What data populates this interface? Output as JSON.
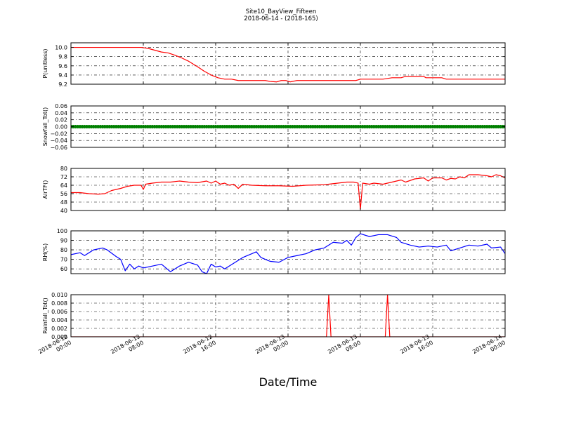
{
  "chart_data": {
    "title_lines": [
      "Site10_BayView_Fifteen",
      "2018-06-14 - (2018-165)"
    ],
    "xlabel": "Date/Time",
    "x_range": [
      "2018-06-12 00:00",
      "2018-06-14 00:00"
    ],
    "x_ticks": [
      {
        "t": "2018-06-12 00:00",
        "label": [
          "2018-06-12",
          "00:00"
        ]
      },
      {
        "t": "2018-06-12 08:00",
        "label": [
          "2018-06-12",
          "08:00"
        ]
      },
      {
        "t": "2018-06-12 16:00",
        "label": [
          "2018-06-12",
          "16:00"
        ]
      },
      {
        "t": "2018-06-13 00:00",
        "label": [
          "2018-06-13",
          "00:00"
        ]
      },
      {
        "t": "2018-06-13 08:00",
        "label": [
          "2018-06-13",
          "08:00"
        ]
      },
      {
        "t": "2018-06-13 16:00",
        "label": [
          "2018-06-13",
          "16:00"
        ]
      },
      {
        "t": "2018-06-14 00:00",
        "label": [
          "2018-06-14",
          "00:00"
        ]
      }
    ],
    "grid": true,
    "panels": [
      {
        "type": "line",
        "ylabel": "P(unitless)",
        "ylim": [
          9.2,
          10.1
        ],
        "yticks": [
          9.2,
          9.4,
          9.6,
          9.8,
          10.0
        ],
        "ytick_labels": [
          "9.2",
          "9.4",
          "9.6",
          "9.8",
          "10.0"
        ],
        "series": [
          {
            "color": "#ff0000",
            "style": "line",
            "points": [
              [
                "2018-06-12 00:00",
                10.0
              ],
              [
                "2018-06-12 02:00",
                10.0
              ],
              [
                "2018-06-12 04:00",
                10.0
              ],
              [
                "2018-06-12 06:00",
                10.0
              ],
              [
                "2018-06-12 07:45",
                10.0
              ],
              [
                "2018-06-12 08:30",
                9.98
              ],
              [
                "2018-06-12 09:15",
                9.94
              ],
              [
                "2018-06-12 10:00",
                9.9
              ],
              [
                "2018-06-12 10:45",
                9.88
              ],
              [
                "2018-06-12 11:30",
                9.83
              ],
              [
                "2018-06-12 12:15",
                9.77
              ],
              [
                "2018-06-12 13:00",
                9.7
              ],
              [
                "2018-06-12 14:00",
                9.58
              ],
              [
                "2018-06-12 14:45",
                9.48
              ],
              [
                "2018-06-12 15:30",
                9.4
              ],
              [
                "2018-06-12 16:15",
                9.34
              ],
              [
                "2018-06-12 17:00",
                9.31
              ],
              [
                "2018-06-12 17:45",
                9.31
              ],
              [
                "2018-06-12 18:30",
                9.28
              ],
              [
                "2018-06-12 20:00",
                9.28
              ],
              [
                "2018-06-12 21:30",
                9.28
              ],
              [
                "2018-06-12 22:00",
                9.26
              ],
              [
                "2018-06-12 22:45",
                9.25
              ],
              [
                "2018-06-12 23:15",
                9.28
              ],
              [
                "2018-06-12 23:45",
                9.28
              ],
              [
                "2018-06-13 00:15",
                9.25
              ],
              [
                "2018-06-13 01:00",
                9.28
              ],
              [
                "2018-06-13 02:00",
                9.28
              ],
              [
                "2018-06-13 04:00",
                9.28
              ],
              [
                "2018-06-13 06:00",
                9.28
              ],
              [
                "2018-06-13 07:30",
                9.28
              ],
              [
                "2018-06-13 08:00",
                9.31
              ],
              [
                "2018-06-13 09:00",
                9.31
              ],
              [
                "2018-06-13 10:30",
                9.31
              ],
              [
                "2018-06-13 11:30",
                9.34
              ],
              [
                "2018-06-13 12:30",
                9.34
              ],
              [
                "2018-06-13 13:00",
                9.37
              ],
              [
                "2018-06-13 14:00",
                9.37
              ],
              [
                "2018-06-13 15:00",
                9.37
              ],
              [
                "2018-06-13 15:15",
                9.34
              ],
              [
                "2018-06-13 16:00",
                9.34
              ],
              [
                "2018-06-13 17:00",
                9.34
              ],
              [
                "2018-06-13 17:30",
                9.31
              ],
              [
                "2018-06-13 19:00",
                9.31
              ],
              [
                "2018-06-13 21:00",
                9.31
              ],
              [
                "2018-06-13 23:00",
                9.31
              ],
              [
                "2018-06-14 00:00",
                9.31
              ]
            ]
          }
        ]
      },
      {
        "type": "scatter",
        "ylabel": "Snowfall_Tot()",
        "ylim": [
          -0.06,
          0.06
        ],
        "yticks": [
          -0.06,
          -0.04,
          -0.02,
          0.0,
          0.02,
          0.04,
          0.06
        ],
        "ytick_labels": [
          "−0.06",
          "−0.04",
          "−0.02",
          "0.00",
          "0.02",
          "0.04",
          "0.06"
        ],
        "series": [
          {
            "color": "#008000",
            "style": "markers",
            "constant": 0.0,
            "interval_minutes": 15
          }
        ]
      },
      {
        "type": "line",
        "ylabel": "AirTF()",
        "ylim": [
          40,
          80
        ],
        "yticks": [
          40,
          48,
          56,
          64,
          72,
          80
        ],
        "ytick_labels": [
          "40",
          "48",
          "56",
          "64",
          "72",
          "80"
        ],
        "series": [
          {
            "color": "#ff0000",
            "style": "line",
            "points": [
              [
                "2018-06-12 00:00",
                57
              ],
              [
                "2018-06-12 01:00",
                57
              ],
              [
                "2018-06-12 02:00",
                56
              ],
              [
                "2018-06-12 03:00",
                55.5
              ],
              [
                "2018-06-12 03:45",
                56
              ],
              [
                "2018-06-12 04:30",
                59
              ],
              [
                "2018-06-12 05:30",
                61
              ],
              [
                "2018-06-12 06:15",
                63
              ],
              [
                "2018-06-12 07:00",
                64
              ],
              [
                "2018-06-12 07:45",
                64
              ],
              [
                "2018-06-12 08:00",
                60
              ],
              [
                "2018-06-12 08:15",
                65
              ],
              [
                "2018-06-12 09:00",
                66
              ],
              [
                "2018-06-12 10:00",
                67
              ],
              [
                "2018-06-12 11:00",
                67
              ],
              [
                "2018-06-12 12:00",
                68
              ],
              [
                "2018-06-12 13:00",
                67
              ],
              [
                "2018-06-12 14:00",
                66.5
              ],
              [
                "2018-06-12 15:00",
                68
              ],
              [
                "2018-06-12 15:30",
                66
              ],
              [
                "2018-06-12 16:00",
                68
              ],
              [
                "2018-06-12 16:30",
                65
              ],
              [
                "2018-06-12 17:00",
                66
              ],
              [
                "2018-06-12 17:30",
                64
              ],
              [
                "2018-06-12 18:00",
                65
              ],
              [
                "2018-06-12 18:30",
                61
              ],
              [
                "2018-06-12 19:00",
                65
              ],
              [
                "2018-06-12 20:00",
                64
              ],
              [
                "2018-06-12 21:30",
                63.5
              ],
              [
                "2018-06-12 23:00",
                63.5
              ],
              [
                "2018-06-13 00:30",
                63
              ],
              [
                "2018-06-13 02:00",
                64
              ],
              [
                "2018-06-13 04:00",
                64.5
              ],
              [
                "2018-06-13 05:30",
                66
              ],
              [
                "2018-06-13 06:30",
                67
              ],
              [
                "2018-06-13 07:15",
                67
              ],
              [
                "2018-06-13 07:45",
                66
              ],
              [
                "2018-06-13 08:00",
                41
              ],
              [
                "2018-06-13 08:15",
                66
              ],
              [
                "2018-06-13 09:00",
                65
              ],
              [
                "2018-06-13 09:30",
                66
              ],
              [
                "2018-06-13 10:30",
                65
              ],
              [
                "2018-06-13 11:30",
                67
              ],
              [
                "2018-06-13 12:30",
                69
              ],
              [
                "2018-06-13 13:00",
                67
              ],
              [
                "2018-06-13 14:00",
                70
              ],
              [
                "2018-06-13 15:00",
                71
              ],
              [
                "2018-06-13 15:30",
                68
              ],
              [
                "2018-06-13 16:00",
                71
              ],
              [
                "2018-06-13 17:00",
                71
              ],
              [
                "2018-06-13 17:30",
                69
              ],
              [
                "2018-06-13 18:00",
                70.5
              ],
              [
                "2018-06-13 18:30",
                70
              ],
              [
                "2018-06-13 19:00",
                72
              ],
              [
                "2018-06-13 19:30",
                71
              ],
              [
                "2018-06-13 20:00",
                74
              ],
              [
                "2018-06-13 21:00",
                74
              ],
              [
                "2018-06-13 22:00",
                73
              ],
              [
                "2018-06-13 22:30",
                72
              ],
              [
                "2018-06-13 23:00",
                74
              ],
              [
                "2018-06-13 23:30",
                73
              ],
              [
                "2018-06-14 00:00",
                71
              ]
            ]
          }
        ]
      },
      {
        "type": "line",
        "ylabel": "RH(%)",
        "ylim": [
          55,
          100
        ],
        "yticks": [
          60,
          70,
          80,
          90,
          100
        ],
        "ytick_labels": [
          "60",
          "70",
          "80",
          "90",
          "100"
        ],
        "series": [
          {
            "color": "#0000ff",
            "style": "line",
            "points": [
              [
                "2018-06-12 00:00",
                75
              ],
              [
                "2018-06-12 01:00",
                77
              ],
              [
                "2018-06-12 01:30",
                74
              ],
              [
                "2018-06-12 02:30",
                80
              ],
              [
                "2018-06-12 03:30",
                82
              ],
              [
                "2018-06-12 04:00",
                80
              ],
              [
                "2018-06-12 05:00",
                73
              ],
              [
                "2018-06-12 05:30",
                70
              ],
              [
                "2018-06-12 06:00",
                58
              ],
              [
                "2018-06-12 06:30",
                65
              ],
              [
                "2018-06-12 07:00",
                60
              ],
              [
                "2018-06-12 07:30",
                63
              ],
              [
                "2018-06-12 08:00",
                61
              ],
              [
                "2018-06-12 09:00",
                63
              ],
              [
                "2018-06-12 10:00",
                65
              ],
              [
                "2018-06-12 11:00",
                57
              ],
              [
                "2018-06-12 12:00",
                63
              ],
              [
                "2018-06-12 13:00",
                67
              ],
              [
                "2018-06-12 14:00",
                64
              ],
              [
                "2018-06-12 14:30",
                57
              ],
              [
                "2018-06-12 15:00",
                55
              ],
              [
                "2018-06-12 15:30",
                65
              ],
              [
                "2018-06-12 16:00",
                62
              ],
              [
                "2018-06-12 16:30",
                63
              ],
              [
                "2018-06-12 17:00",
                60
              ],
              [
                "2018-06-12 18:00",
                66
              ],
              [
                "2018-06-12 19:00",
                72
              ],
              [
                "2018-06-12 20:00",
                76
              ],
              [
                "2018-06-12 20:30",
                78
              ],
              [
                "2018-06-12 21:00",
                72
              ],
              [
                "2018-06-12 22:00",
                68
              ],
              [
                "2018-06-12 23:00",
                67
              ],
              [
                "2018-06-13 00:00",
                72
              ],
              [
                "2018-06-13 01:00",
                74
              ],
              [
                "2018-06-13 02:00",
                76
              ],
              [
                "2018-06-13 03:00",
                80
              ],
              [
                "2018-06-13 04:00",
                82
              ],
              [
                "2018-06-13 05:00",
                88
              ],
              [
                "2018-06-13 06:00",
                87
              ],
              [
                "2018-06-13 06:30",
                90
              ],
              [
                "2018-06-13 07:00",
                85
              ],
              [
                "2018-06-13 07:30",
                93
              ],
              [
                "2018-06-13 08:00",
                97
              ],
              [
                "2018-06-13 09:00",
                94
              ],
              [
                "2018-06-13 10:00",
                96
              ],
              [
                "2018-06-13 11:00",
                96
              ],
              [
                "2018-06-13 12:00",
                93
              ],
              [
                "2018-06-13 12:30",
                88
              ],
              [
                "2018-06-13 13:30",
                85
              ],
              [
                "2018-06-13 14:30",
                83
              ],
              [
                "2018-06-13 15:30",
                84
              ],
              [
                "2018-06-13 16:30",
                83
              ],
              [
                "2018-06-13 17:30",
                85
              ],
              [
                "2018-06-13 18:00",
                79
              ],
              [
                "2018-06-13 19:00",
                82
              ],
              [
                "2018-06-13 20:00",
                85
              ],
              [
                "2018-06-13 21:00",
                84
              ],
              [
                "2018-06-13 22:00",
                86
              ],
              [
                "2018-06-13 22:30",
                82
              ],
              [
                "2018-06-13 23:30",
                83
              ],
              [
                "2018-06-14 00:00",
                76
              ]
            ]
          }
        ]
      },
      {
        "type": "line",
        "ylabel": "Rainfall_Tot()",
        "ylim": [
          0.0,
          0.01
        ],
        "yticks": [
          0.0,
          0.002,
          0.004,
          0.006,
          0.008,
          0.01
        ],
        "ytick_labels": [
          "0.000",
          "0.002",
          "0.004",
          "0.006",
          "0.008",
          "0.010"
        ],
        "series": [
          {
            "color": "#ff0000",
            "style": "line",
            "points": [
              [
                "2018-06-12 00:00",
                0.0
              ],
              [
                "2018-06-13 04:15",
                0.0
              ],
              [
                "2018-06-13 04:30",
                0.01
              ],
              [
                "2018-06-13 04:45",
                0.0
              ],
              [
                "2018-06-13 10:45",
                0.0
              ],
              [
                "2018-06-13 11:00",
                0.01
              ],
              [
                "2018-06-13 11:15",
                0.0
              ],
              [
                "2018-06-14 00:00",
                0.0
              ]
            ]
          }
        ]
      }
    ]
  }
}
